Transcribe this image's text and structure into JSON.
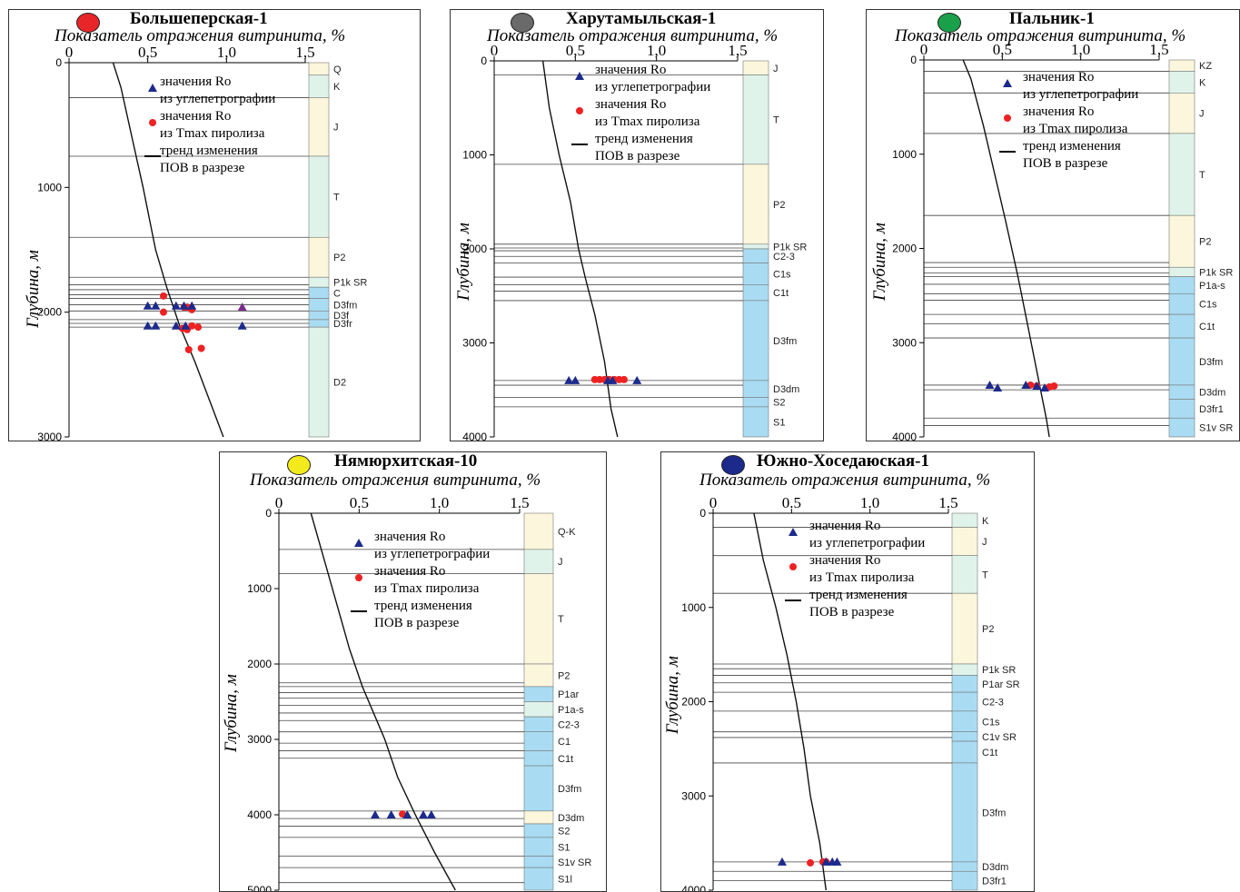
{
  "colors": {
    "ro_marker": "#1c2a8c",
    "tmax_marker": "#ee2222",
    "trend": "#111111",
    "strat_yellow": "#fbf6dc",
    "strat_green": "#dff3ea",
    "strat_blue": "#a9dcf2"
  },
  "legend": {
    "ro_line1": "значения Ro",
    "ro_line2": "из углепетрографии",
    "tmax_line1": "значения Ro",
    "tmax_line2": "из Tmax пиролиза",
    "trend_line1": "тренд изменения",
    "trend_line2": "ПОВ в разрезе"
  },
  "chart_data": [
    {
      "type": "scatter",
      "title": "Большеперская-1",
      "badge_color": "#e8262a",
      "xlabel": "Показатель отражения витринита, %",
      "ylabel": "Глубина, м",
      "xlim": [
        0,
        1.5
      ],
      "ylim": [
        0,
        3000
      ],
      "xticks": [
        0,
        0.5,
        1.0,
        1.5
      ],
      "xtick_labels": [
        "0",
        "0,5",
        "1,0",
        "1,5"
      ],
      "yticks": [
        0,
        1000,
        2000,
        3000
      ],
      "ytick_labels": [
        "0",
        "1000",
        "2000",
        "3000"
      ],
      "trend": [
        [
          0.28,
          0
        ],
        [
          0.33,
          200
        ],
        [
          0.4,
          600
        ],
        [
          0.47,
          1000
        ],
        [
          0.55,
          1500
        ],
        [
          0.62,
          1800
        ],
        [
          0.7,
          2100
        ],
        [
          0.8,
          2400
        ],
        [
          0.98,
          3000
        ]
      ],
      "ro_points": [
        [
          0.5,
          1950
        ],
        [
          0.55,
          1950
        ],
        [
          0.68,
          1950
        ],
        [
          0.73,
          1950
        ],
        [
          0.78,
          1950
        ],
        [
          0.5,
          2110
        ],
        [
          0.55,
          2110
        ],
        [
          0.68,
          2110
        ],
        [
          0.74,
          2110
        ],
        [
          1.1,
          2110
        ]
      ],
      "ro_points_purple": [
        [
          1.1,
          1960
        ]
      ],
      "tmax_points": [
        [
          0.6,
          1870
        ],
        [
          0.6,
          2000
        ],
        [
          0.73,
          1960
        ],
        [
          0.75,
          1960
        ],
        [
          0.78,
          1980
        ],
        [
          0.72,
          2130
        ],
        [
          0.75,
          2140
        ],
        [
          0.78,
          2110
        ],
        [
          0.82,
          2120
        ],
        [
          0.76,
          2300
        ],
        [
          0.84,
          2290
        ]
      ],
      "strat": [
        {
          "name": "Q",
          "top": 0,
          "bottom": 100,
          "fill": "yellow"
        },
        {
          "name": "K",
          "top": 100,
          "bottom": 280,
          "fill": "green"
        },
        {
          "name": "J",
          "top": 280,
          "bottom": 750,
          "fill": "yellow"
        },
        {
          "name": "T",
          "top": 750,
          "bottom": 1400,
          "fill": "green"
        },
        {
          "name": "P2",
          "top": 1400,
          "bottom": 1720,
          "fill": "yellow"
        },
        {
          "name": "P1k SR",
          "top": 1720,
          "bottom": 1800,
          "fill": "green"
        },
        {
          "name": "C",
          "top": 1800,
          "bottom": 1890,
          "fill": "blue"
        },
        {
          "name": "D3fm",
          "top": 1890,
          "bottom": 1990,
          "fill": "blue"
        },
        {
          "name": "D3f",
          "top": 1990,
          "bottom": 2060,
          "fill": "blue"
        },
        {
          "name": "D3fr",
          "top": 2060,
          "bottom": 2120,
          "fill": "blue"
        },
        {
          "name": "D2",
          "top": 2120,
          "bottom": 3000,
          "fill": "green"
        }
      ],
      "hlines": [
        0,
        280,
        750,
        1400,
        1720,
        1780,
        1820,
        1860,
        1890,
        1940,
        1990,
        2060,
        2090,
        2120
      ]
    },
    {
      "type": "scatter",
      "title": "Харутамыльская-1",
      "badge_color": "#6a6a6a",
      "xlabel": "Показатель отражения витринита, %",
      "ylabel": "Глубина, м",
      "xlim": [
        0,
        1.5
      ],
      "ylim": [
        0,
        4000
      ],
      "xticks": [
        0,
        0.5,
        1.0,
        1.5
      ],
      "xtick_labels": [
        "0",
        "0,5",
        "1,0",
        "1,5"
      ],
      "yticks": [
        0,
        1000,
        2000,
        3000,
        4000
      ],
      "ytick_labels": [
        "0",
        "1000",
        "2000",
        "3000",
        "4000"
      ],
      "trend": [
        [
          0.3,
          0
        ],
        [
          0.34,
          500
        ],
        [
          0.4,
          1000
        ],
        [
          0.47,
          1500
        ],
        [
          0.52,
          2000
        ],
        [
          0.56,
          2300
        ],
        [
          0.62,
          2700
        ],
        [
          0.68,
          3200
        ],
        [
          0.72,
          3700
        ],
        [
          0.76,
          4000
        ]
      ],
      "ro_points": [
        [
          0.46,
          3400
        ],
        [
          0.5,
          3400
        ],
        [
          0.7,
          3400
        ],
        [
          0.73,
          3400
        ],
        [
          0.88,
          3400
        ]
      ],
      "ro_points_purple": [],
      "tmax_points": [
        [
          0.62,
          3390
        ],
        [
          0.65,
          3390
        ],
        [
          0.68,
          3390
        ],
        [
          0.71,
          3390
        ],
        [
          0.74,
          3390
        ],
        [
          0.77,
          3390
        ],
        [
          0.8,
          3390
        ]
      ],
      "strat": [
        {
          "name": "J",
          "top": 0,
          "bottom": 150,
          "fill": "yellow"
        },
        {
          "name": "T",
          "top": 150,
          "bottom": 1100,
          "fill": "green"
        },
        {
          "name": "P2",
          "top": 1100,
          "bottom": 1950,
          "fill": "yellow"
        },
        {
          "name": "P1k SR",
          "top": 1950,
          "bottom": 2000,
          "fill": "green"
        },
        {
          "name": "C2-3",
          "top": 2000,
          "bottom": 2150,
          "fill": "blue"
        },
        {
          "name": "C1s",
          "top": 2150,
          "bottom": 2380,
          "fill": "blue"
        },
        {
          "name": "C1t",
          "top": 2380,
          "bottom": 2550,
          "fill": "blue"
        },
        {
          "name": "D3fm",
          "top": 2550,
          "bottom": 3400,
          "fill": "blue"
        },
        {
          "name": "D3dm",
          "top": 3400,
          "bottom": 3580,
          "fill": "blue"
        },
        {
          "name": "S2",
          "top": 3580,
          "bottom": 3680,
          "fill": "blue"
        },
        {
          "name": "S1",
          "top": 3680,
          "bottom": 4000,
          "fill": "blue"
        }
      ],
      "hlines": [
        150,
        1100,
        1950,
        1990,
        2020,
        2080,
        2150,
        2300,
        2380,
        2450,
        2550,
        3400,
        3450,
        3580,
        3680
      ]
    },
    {
      "type": "scatter",
      "title": "Пальник-1",
      "badge_color": "#1aa04a",
      "xlabel": "Показатель отражения витринита, %",
      "ylabel": "Глубина, м",
      "xlim": [
        0,
        1.5
      ],
      "ylim": [
        0,
        4000
      ],
      "xticks": [
        0,
        0.5,
        1.0,
        1.5
      ],
      "xtick_labels": [
        "0",
        "0,5",
        "1,0",
        "1,5"
      ],
      "yticks": [
        0,
        1000,
        2000,
        3000,
        4000
      ],
      "ytick_labels": [
        "0",
        "1000",
        "2000",
        "3000",
        "4000"
      ],
      "trend": [
        [
          0.25,
          0
        ],
        [
          0.3,
          200
        ],
        [
          0.38,
          700
        ],
        [
          0.45,
          1200
        ],
        [
          0.52,
          1700
        ],
        [
          0.6,
          2300
        ],
        [
          0.66,
          2800
        ],
        [
          0.72,
          3300
        ],
        [
          0.78,
          3800
        ],
        [
          0.8,
          4000
        ]
      ],
      "ro_points": [
        [
          0.42,
          3450
        ],
        [
          0.47,
          3480
        ],
        [
          0.65,
          3450
        ],
        [
          0.72,
          3460
        ],
        [
          0.77,
          3480
        ]
      ],
      "ro_points_purple": [],
      "tmax_points": [
        [
          0.68,
          3450
        ],
        [
          0.72,
          3460
        ],
        [
          0.8,
          3470
        ],
        [
          0.83,
          3460
        ]
      ],
      "strat": [
        {
          "name": "KZ",
          "top": 0,
          "bottom": 120,
          "fill": "yellow"
        },
        {
          "name": "K",
          "top": 120,
          "bottom": 350,
          "fill": "green"
        },
        {
          "name": "J",
          "top": 350,
          "bottom": 780,
          "fill": "yellow"
        },
        {
          "name": "T",
          "top": 780,
          "bottom": 1650,
          "fill": "green"
        },
        {
          "name": "P2",
          "top": 1650,
          "bottom": 2200,
          "fill": "yellow"
        },
        {
          "name": "P1k SR",
          "top": 2200,
          "bottom": 2300,
          "fill": "green"
        },
        {
          "name": "P1a-s",
          "top": 2300,
          "bottom": 2480,
          "fill": "blue"
        },
        {
          "name": "C1s",
          "top": 2480,
          "bottom": 2700,
          "fill": "blue"
        },
        {
          "name": "C1t",
          "top": 2700,
          "bottom": 2950,
          "fill": "blue"
        },
        {
          "name": "D3fm",
          "top": 2950,
          "bottom": 3450,
          "fill": "blue"
        },
        {
          "name": "D3dm",
          "top": 3450,
          "bottom": 3600,
          "fill": "blue"
        },
        {
          "name": "D3fr1",
          "top": 3600,
          "bottom": 3800,
          "fill": "blue"
        },
        {
          "name": "S1v SR",
          "top": 3800,
          "bottom": 4000,
          "fill": "blue"
        }
      ],
      "hlines": [
        120,
        350,
        780,
        1650,
        2150,
        2200,
        2260,
        2300,
        2380,
        2480,
        2550,
        2700,
        2800,
        2950,
        3450,
        3500,
        3800,
        3880
      ]
    },
    {
      "type": "scatter",
      "title": "Нямюрхитская-10",
      "badge_color": "#f2ea1c",
      "xlabel": "Показатель отражения витринита, %",
      "ylabel": "Глубина, м",
      "xlim": [
        0,
        1.5
      ],
      "ylim": [
        0,
        5000
      ],
      "xticks": [
        0,
        0.5,
        1.0,
        1.5
      ],
      "xtick_labels": [
        "0",
        "0.5",
        "1.0",
        "1.5"
      ],
      "yticks": [
        0,
        1000,
        2000,
        3000,
        4000,
        5000
      ],
      "ytick_labels": [
        "0",
        "1000",
        "2000",
        "3000",
        "4000",
        "5000"
      ],
      "trend": [
        [
          0.2,
          0
        ],
        [
          0.28,
          600
        ],
        [
          0.36,
          1200
        ],
        [
          0.44,
          1800
        ],
        [
          0.52,
          2300
        ],
        [
          0.58,
          2600
        ],
        [
          0.66,
          3000
        ],
        [
          0.74,
          3500
        ],
        [
          0.85,
          4000
        ],
        [
          0.97,
          4500
        ],
        [
          1.1,
          5000
        ]
      ],
      "ro_points": [
        [
          0.6,
          4000
        ],
        [
          0.7,
          4000
        ],
        [
          0.8,
          4000
        ],
        [
          0.9,
          4000
        ],
        [
          0.95,
          4000
        ]
      ],
      "ro_points_purple": [],
      "tmax_points": [
        [
          0.77,
          3990
        ]
      ],
      "strat": [
        {
          "name": "Q-K",
          "top": 0,
          "bottom": 480,
          "fill": "yellow"
        },
        {
          "name": "J",
          "top": 480,
          "bottom": 800,
          "fill": "green"
        },
        {
          "name": "T",
          "top": 800,
          "bottom": 2000,
          "fill": "yellow"
        },
        {
          "name": "P2",
          "top": 2000,
          "bottom": 2300,
          "fill": "yellow"
        },
        {
          "name": "P1ar",
          "top": 2300,
          "bottom": 2500,
          "fill": "blue"
        },
        {
          "name": "P1a-s",
          "top": 2500,
          "bottom": 2700,
          "fill": "green"
        },
        {
          "name": "C2-3",
          "top": 2700,
          "bottom": 2900,
          "fill": "blue"
        },
        {
          "name": "C1",
          "top": 2900,
          "bottom": 3150,
          "fill": "blue"
        },
        {
          "name": "C1t",
          "top": 3150,
          "bottom": 3350,
          "fill": "blue"
        },
        {
          "name": "D3fm",
          "top": 3350,
          "bottom": 3950,
          "fill": "blue"
        },
        {
          "name": "D3dm",
          "top": 3950,
          "bottom": 4120,
          "fill": "yellow"
        },
        {
          "name": "S2",
          "top": 4120,
          "bottom": 4300,
          "fill": "blue"
        },
        {
          "name": "S1",
          "top": 4300,
          "bottom": 4550,
          "fill": "blue"
        },
        {
          "name": "S1v SR",
          "top": 4550,
          "bottom": 4700,
          "fill": "blue"
        },
        {
          "name": "S1l",
          "top": 4700,
          "bottom": 5000,
          "fill": "blue"
        }
      ],
      "hlines": [
        480,
        800,
        2000,
        2250,
        2300,
        2380,
        2450,
        2550,
        2650,
        2750,
        2900,
        3050,
        3150,
        3250,
        3950,
        4050,
        4150,
        4300,
        4550,
        4700,
        4900
      ]
    },
    {
      "type": "scatter",
      "title": "Южно-Хоседаюская-1",
      "badge_color": "#1c2a8c",
      "xlabel": "Показатель отражения витринита, %",
      "ylabel": "Глубина, м",
      "xlim": [
        0,
        1.5
      ],
      "ylim": [
        0,
        4000
      ],
      "xticks": [
        0,
        0.5,
        1.0,
        1.5
      ],
      "xtick_labels": [
        "0",
        "0.5",
        "1.0",
        "1.5"
      ],
      "yticks": [
        0,
        1000,
        2000,
        3000,
        4000
      ],
      "ytick_labels": [
        "0",
        "1000",
        "2000",
        "3000",
        "4000"
      ],
      "trend": [
        [
          0.26,
          0
        ],
        [
          0.32,
          500
        ],
        [
          0.4,
          1000
        ],
        [
          0.47,
          1500
        ],
        [
          0.53,
          2000
        ],
        [
          0.58,
          2500
        ],
        [
          0.62,
          3000
        ],
        [
          0.68,
          3500
        ],
        [
          0.72,
          4000
        ]
      ],
      "ro_points": [
        [
          0.44,
          3700
        ],
        [
          0.72,
          3700
        ],
        [
          0.76,
          3700
        ],
        [
          0.79,
          3700
        ]
      ],
      "ro_points_purple": [],
      "tmax_points": [
        [
          0.62,
          3710
        ],
        [
          0.7,
          3700
        ],
        [
          0.72,
          3700
        ]
      ],
      "strat": [
        {
          "name": "K",
          "top": 0,
          "bottom": 150,
          "fill": "green"
        },
        {
          "name": "J",
          "top": 150,
          "bottom": 450,
          "fill": "yellow"
        },
        {
          "name": "T",
          "top": 450,
          "bottom": 850,
          "fill": "green"
        },
        {
          "name": "P2",
          "top": 850,
          "bottom": 1600,
          "fill": "yellow"
        },
        {
          "name": "P1k SR",
          "top": 1600,
          "bottom": 1720,
          "fill": "green"
        },
        {
          "name": "P1ar SR",
          "top": 1720,
          "bottom": 1900,
          "fill": "blue"
        },
        {
          "name": "C2-3",
          "top": 1900,
          "bottom": 2100,
          "fill": "blue"
        },
        {
          "name": "C1s",
          "top": 2100,
          "bottom": 2320,
          "fill": "blue"
        },
        {
          "name": "C1v SR",
          "top": 2320,
          "bottom": 2420,
          "fill": "blue"
        },
        {
          "name": "C1t",
          "top": 2420,
          "bottom": 2650,
          "fill": "blue"
        },
        {
          "name": "D3fm",
          "top": 2650,
          "bottom": 3700,
          "fill": "blue"
        },
        {
          "name": "D3dm",
          "top": 3700,
          "bottom": 3800,
          "fill": "blue"
        },
        {
          "name": "D3fr1",
          "top": 3800,
          "bottom": 4000,
          "fill": "blue"
        }
      ],
      "hlines": [
        150,
        450,
        850,
        1600,
        1650,
        1720,
        1800,
        1900,
        2100,
        2320,
        2380,
        2650,
        3700,
        3800,
        3900
      ]
    }
  ]
}
